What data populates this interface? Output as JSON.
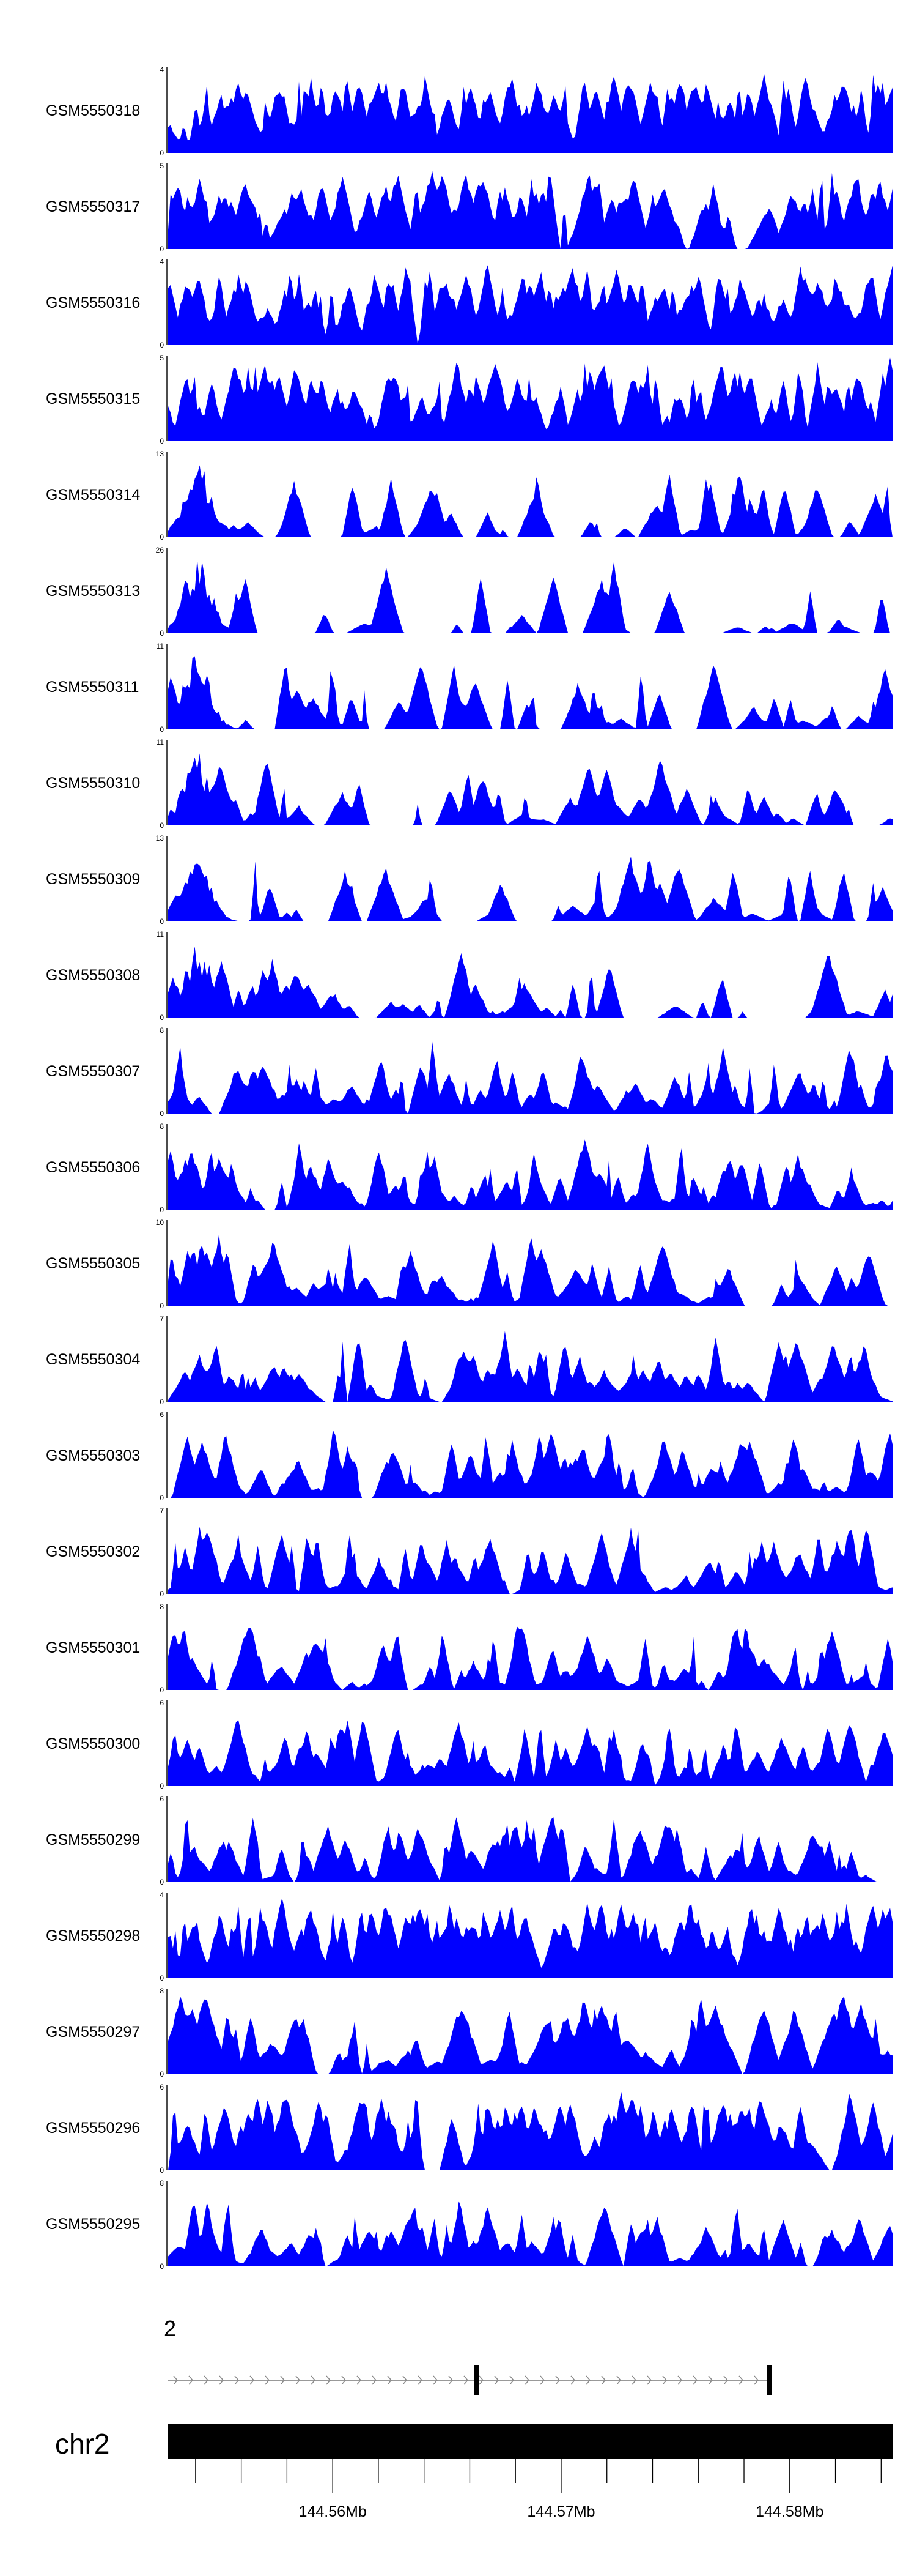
{
  "chart_data": {
    "type": "area",
    "title": "",
    "xlabel": "",
    "ylabel": "",
    "xlim": [
      144.5528,
      144.5845
    ],
    "x_axis_unit": "Mb",
    "fill_color": "#0000ff",
    "gene_track_label": "2",
    "chromosome_label": "chr2",
    "x_ticks": [
      {
        "value": 144.56,
        "label": "144.56Mb"
      },
      {
        "value": 144.57,
        "label": "144.57Mb"
      },
      {
        "value": 144.58,
        "label": "144.58Mb"
      }
    ],
    "gene_exons": [
      144.5663,
      144.5791
    ],
    "tracks": [
      {
        "name": "GSM5550318",
        "ymax": "4",
        "seed": 318,
        "profile": "flat",
        "density": 0.62
      },
      {
        "name": "GSM5550317",
        "ymax": "5",
        "seed": 317,
        "profile": "flat",
        "density": 0.52
      },
      {
        "name": "GSM5550316",
        "ymax": "4",
        "seed": 316,
        "profile": "flat",
        "density": 0.55
      },
      {
        "name": "GSM5550315",
        "ymax": "5",
        "seed": 315,
        "profile": "flat",
        "density": 0.58
      },
      {
        "name": "GSM5550314",
        "ymax": "13",
        "seed": 314,
        "profile": "early",
        "density": 0.22
      },
      {
        "name": "GSM5550313",
        "ymax": "26",
        "seed": 313,
        "profile": "early",
        "density": 0.1
      },
      {
        "name": "GSM5550311",
        "ymax": "11",
        "seed": 311,
        "profile": "early",
        "density": 0.2
      },
      {
        "name": "GSM5550310",
        "ymax": "11",
        "seed": 310,
        "profile": "early",
        "density": 0.22
      },
      {
        "name": "GSM5550309",
        "ymax": "13",
        "seed": 309,
        "profile": "early",
        "density": 0.18
      },
      {
        "name": "GSM5550308",
        "ymax": "11",
        "seed": 308,
        "profile": "early",
        "density": 0.2
      },
      {
        "name": "GSM5550307",
        "ymax": "8",
        "seed": 307,
        "profile": "spiky",
        "density": 0.4
      },
      {
        "name": "GSM5550306",
        "ymax": "8",
        "seed": 306,
        "profile": "spiky",
        "density": 0.4
      },
      {
        "name": "GSM5550305",
        "ymax": "10",
        "seed": 305,
        "profile": "early-spiky",
        "density": 0.3
      },
      {
        "name": "GSM5550304",
        "ymax": "7",
        "seed": 304,
        "profile": "spiky",
        "density": 0.42
      },
      {
        "name": "GSM5550303",
        "ymax": "6",
        "seed": 303,
        "profile": "spiky",
        "density": 0.45
      },
      {
        "name": "GSM5550302",
        "ymax": "7",
        "seed": 302,
        "profile": "spiky",
        "density": 0.42
      },
      {
        "name": "GSM5550301",
        "ymax": "8",
        "seed": 301,
        "profile": "spiky",
        "density": 0.4
      },
      {
        "name": "GSM5550300",
        "ymax": "6",
        "seed": 300,
        "profile": "spiky",
        "density": 0.45
      },
      {
        "name": "GSM5550299",
        "ymax": "6",
        "seed": 299,
        "profile": "spiky",
        "density": 0.42
      },
      {
        "name": "GSM5550298",
        "ymax": "4",
        "seed": 298,
        "profile": "flat",
        "density": 0.5
      },
      {
        "name": "GSM5550297",
        "ymax": "8",
        "seed": 297,
        "profile": "sparse",
        "density": 0.28
      },
      {
        "name": "GSM5550296",
        "ymax": "6",
        "seed": 296,
        "profile": "flat",
        "density": 0.42
      },
      {
        "name": "GSM5550295",
        "ymax": "8",
        "seed": 295,
        "profile": "spiky",
        "density": 0.38
      }
    ]
  }
}
